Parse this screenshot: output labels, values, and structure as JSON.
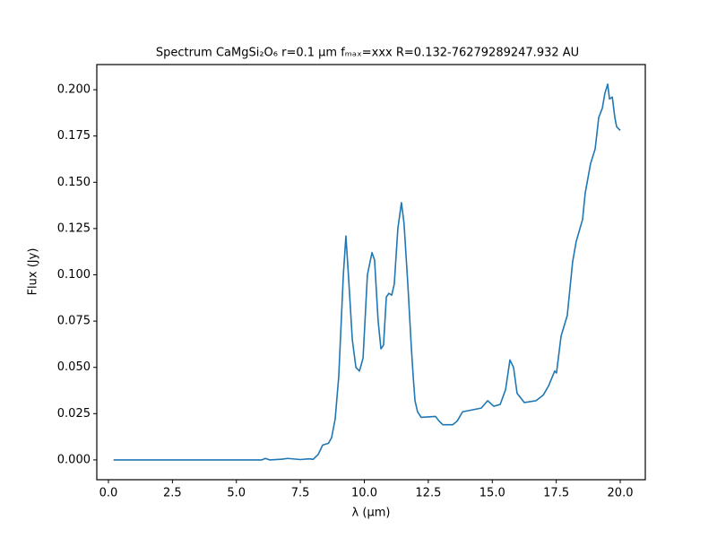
{
  "chart_data": {
    "type": "line",
    "title": "Spectrum CaMgSi₂O₆ r=0.1 μm fₘₐₓ=xxx R=0.132-76279289247.932 AU",
    "x_label": "λ (μm)",
    "y_label": "Flux (Jy)",
    "color": "#1f77b4",
    "grid": false,
    "x": [
      0.2,
      6.0,
      6.13,
      6.3,
      6.8,
      7.0,
      7.5,
      7.85,
      8.0,
      8.2,
      8.37,
      8.6,
      8.72,
      8.86,
      9.0,
      9.18,
      9.28,
      9.4,
      9.53,
      9.67,
      9.81,
      9.95,
      10.12,
      10.3,
      10.4,
      10.54,
      10.65,
      10.75,
      10.86,
      10.96,
      11.07,
      11.17,
      11.31,
      11.45,
      11.55,
      11.7,
      11.84,
      11.91,
      11.98,
      12.08,
      12.22,
      12.78,
      12.92,
      13.07,
      13.45,
      13.63,
      13.84,
      14.57,
      14.82,
      15.06,
      15.31,
      15.52,
      15.69,
      15.83,
      15.97,
      16.25,
      16.71,
      16.99,
      17.2,
      17.44,
      17.51,
      17.69,
      17.93,
      18.14,
      18.28,
      18.53,
      18.63,
      18.84,
      19.02,
      19.16,
      19.3,
      19.4,
      19.51,
      19.58,
      19.69,
      19.79,
      19.86,
      20.0
    ],
    "values": [
      0,
      0,
      0.0008,
      0,
      0.0004,
      0.0008,
      0.0002,
      0.0006,
      0.0003,
      0.003,
      0.008,
      0.009,
      0.012,
      0.022,
      0.045,
      0.1,
      0.121,
      0.095,
      0.065,
      0.05,
      0.048,
      0.055,
      0.1,
      0.112,
      0.108,
      0.075,
      0.06,
      0.062,
      0.088,
      0.09,
      0.089,
      0.095,
      0.125,
      0.139,
      0.128,
      0.095,
      0.06,
      0.045,
      0.032,
      0.026,
      0.023,
      0.0235,
      0.021,
      0.019,
      0.019,
      0.021,
      0.026,
      0.028,
      0.032,
      0.029,
      0.03,
      0.038,
      0.054,
      0.05,
      0.036,
      0.031,
      0.032,
      0.035,
      0.04,
      0.048,
      0.047,
      0.067,
      0.078,
      0.107,
      0.118,
      0.13,
      0.144,
      0.16,
      0.168,
      0.185,
      0.19,
      0.198,
      0.203,
      0.195,
      0.196,
      0.185,
      0.18,
      0.178
    ],
    "xlim": [
      -0.455,
      20.98
    ],
    "ylim": [
      -0.0107,
      0.2136
    ],
    "xticks": [
      {
        "value": 0,
        "label": "0.0"
      },
      {
        "value": 2.5,
        "label": "2.5"
      },
      {
        "value": 5,
        "label": "5.0"
      },
      {
        "value": 7.5,
        "label": "7.5"
      },
      {
        "value": 10,
        "label": "10.0"
      },
      {
        "value": 12.5,
        "label": "12.5"
      },
      {
        "value": 15,
        "label": "15.0"
      },
      {
        "value": 17.5,
        "label": "17.5"
      },
      {
        "value": 20,
        "label": "20.0"
      }
    ],
    "yticks": [
      {
        "value": 0,
        "label": "0.000"
      },
      {
        "value": 0.025,
        "label": "0.025"
      },
      {
        "value": 0.05,
        "label": "0.050"
      },
      {
        "value": 0.075,
        "label": "0.075"
      },
      {
        "value": 0.1,
        "label": "0.100"
      },
      {
        "value": 0.125,
        "label": "0.125"
      },
      {
        "value": 0.15,
        "label": "0.150"
      },
      {
        "value": 0.175,
        "label": "0.175"
      },
      {
        "value": 0.2,
        "label": "0.200"
      }
    ]
  }
}
